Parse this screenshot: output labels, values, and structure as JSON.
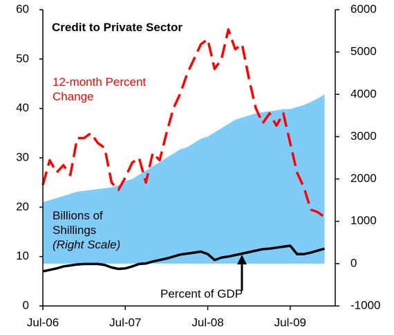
{
  "chart_data": {
    "type": "line",
    "title": "Credit to Private Sector",
    "categories": [
      "Jul-06",
      null,
      null,
      null,
      null,
      null,
      null,
      null,
      null,
      null,
      null,
      null,
      "Jul-07",
      null,
      null,
      null,
      null,
      null,
      null,
      null,
      null,
      null,
      null,
      null,
      "Jul-08",
      null,
      null,
      null,
      null,
      null,
      null,
      null,
      null,
      null,
      null,
      null,
      "Jul-09",
      null,
      null,
      null,
      null,
      null
    ],
    "ylim": [
      0,
      60
    ],
    "yticks": [
      0,
      10,
      20,
      30,
      40,
      50,
      60
    ],
    "y2lim": [
      -1000,
      6000
    ],
    "y2ticks": [
      -1000,
      0,
      1000,
      2000,
      3000,
      4000,
      5000,
      6000
    ],
    "series": [
      {
        "name": "12-month Percent Change",
        "color": "#ff0000",
        "style": "dashed",
        "values": [
          24.5,
          29.5,
          27,
          28.5,
          26.5,
          34,
          34,
          35,
          33,
          32,
          25,
          23.5,
          26,
          29,
          30,
          25,
          31,
          29.5,
          35,
          40,
          43,
          47,
          50,
          53,
          54,
          48,
          50,
          56,
          52,
          53,
          46,
          40,
          37,
          39,
          36.5,
          39,
          33,
          27,
          24,
          19.5,
          19,
          18
        ]
      },
      {
        "name": "Percent of GDP",
        "color": "#000000",
        "values": [
          7,
          7.3,
          7.6,
          8,
          8.2,
          8.4,
          8.5,
          8.5,
          8.5,
          8.3,
          7.8,
          7.5,
          7.6,
          8,
          8.5,
          8.6,
          9,
          9.3,
          9.6,
          10,
          10.4,
          10.6,
          10.8,
          11,
          10.5,
          9.3,
          9.8,
          10,
          10.3,
          10.6,
          10.9,
          11.2,
          11.5,
          11.6,
          11.8,
          12,
          12.2,
          10.5,
          10.5,
          10.8,
          11.2,
          11.6
        ]
      },
      {
        "name": "Billions of Shillings",
        "color": "#80ccf8",
        "axis": "y2",
        "style": "area",
        "values": [
          1450,
          1500,
          1550,
          1600,
          1650,
          1700,
          1720,
          1740,
          1760,
          1780,
          1800,
          1850,
          1950,
          2000,
          2100,
          2200,
          2300,
          2400,
          2500,
          2600,
          2700,
          2750,
          2850,
          2950,
          3000,
          3100,
          3200,
          3300,
          3400,
          3450,
          3500,
          3550,
          3580,
          3600,
          3620,
          3650,
          3650,
          3700,
          3750,
          3820,
          3900,
          4000
        ]
      }
    ],
    "annotations": [
      "(Right Scale)"
    ]
  }
}
